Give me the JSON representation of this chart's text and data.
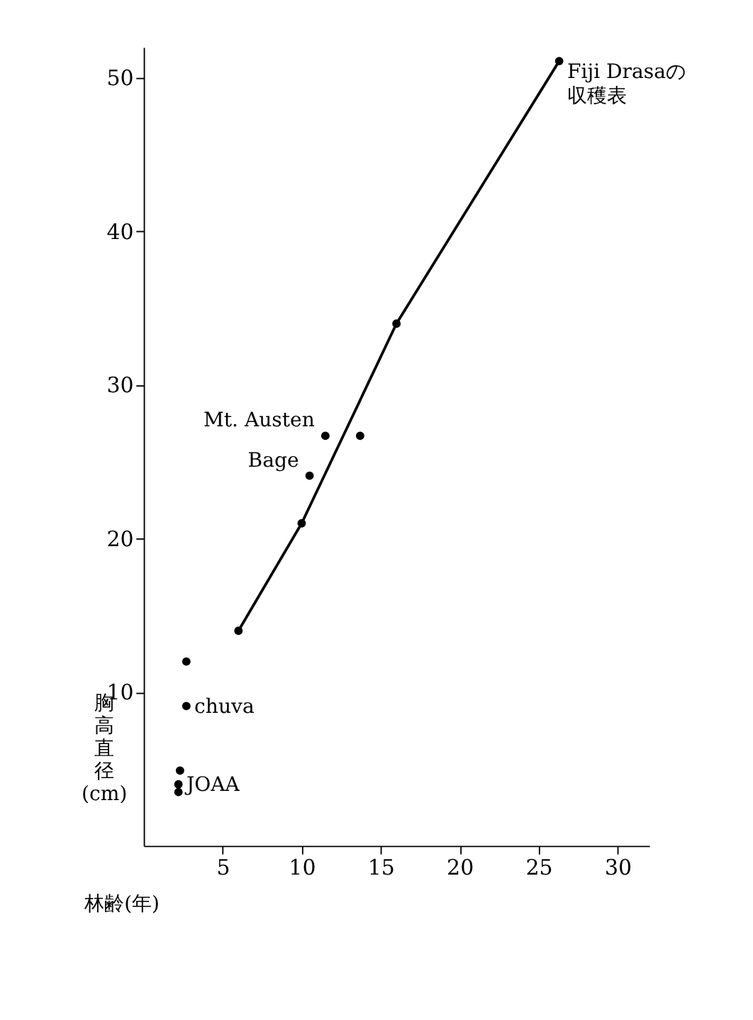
{
  "chart_data": {
    "type": "scatter",
    "xlabel": "林齢(年)",
    "ylabel": "胸高直径(cm)",
    "xlim": [
      0,
      32
    ],
    "ylim": [
      0,
      52
    ],
    "xticks": [
      5,
      10,
      15,
      20,
      25,
      30
    ],
    "yticks": [
      10,
      20,
      30,
      40,
      50
    ],
    "grid": false,
    "marker": "circle",
    "series": [
      {
        "type": "line",
        "color": "#000000",
        "x": [
          6,
          10,
          16,
          26.3
        ],
        "values": [
          14,
          21,
          34,
          51.1
        ],
        "line_style": "solid"
      },
      {
        "color": "#000000",
        "x": [
          11.5,
          13.7,
          10.5,
          2.7,
          2.7,
          2.3,
          2.2,
          2.2
        ],
        "values": [
          26.7,
          26.7,
          24.1,
          12,
          9.1,
          4.9,
          4,
          3.5
        ]
      }
    ],
    "annotations": [
      {
        "text": "Fiji Drasaの収穫表",
        "x": 26.3,
        "y": 51.1
      },
      {
        "text": "Mt. Austen",
        "x": 11.5,
        "y": 26.7
      },
      {
        "text": "Bage",
        "x": 10.5,
        "y": 24.1
      },
      {
        "text": "chuva",
        "x": 2.7,
        "y": 9.1
      },
      {
        "text": "JOAA",
        "x": 2.2,
        "y": 4
      }
    ]
  }
}
